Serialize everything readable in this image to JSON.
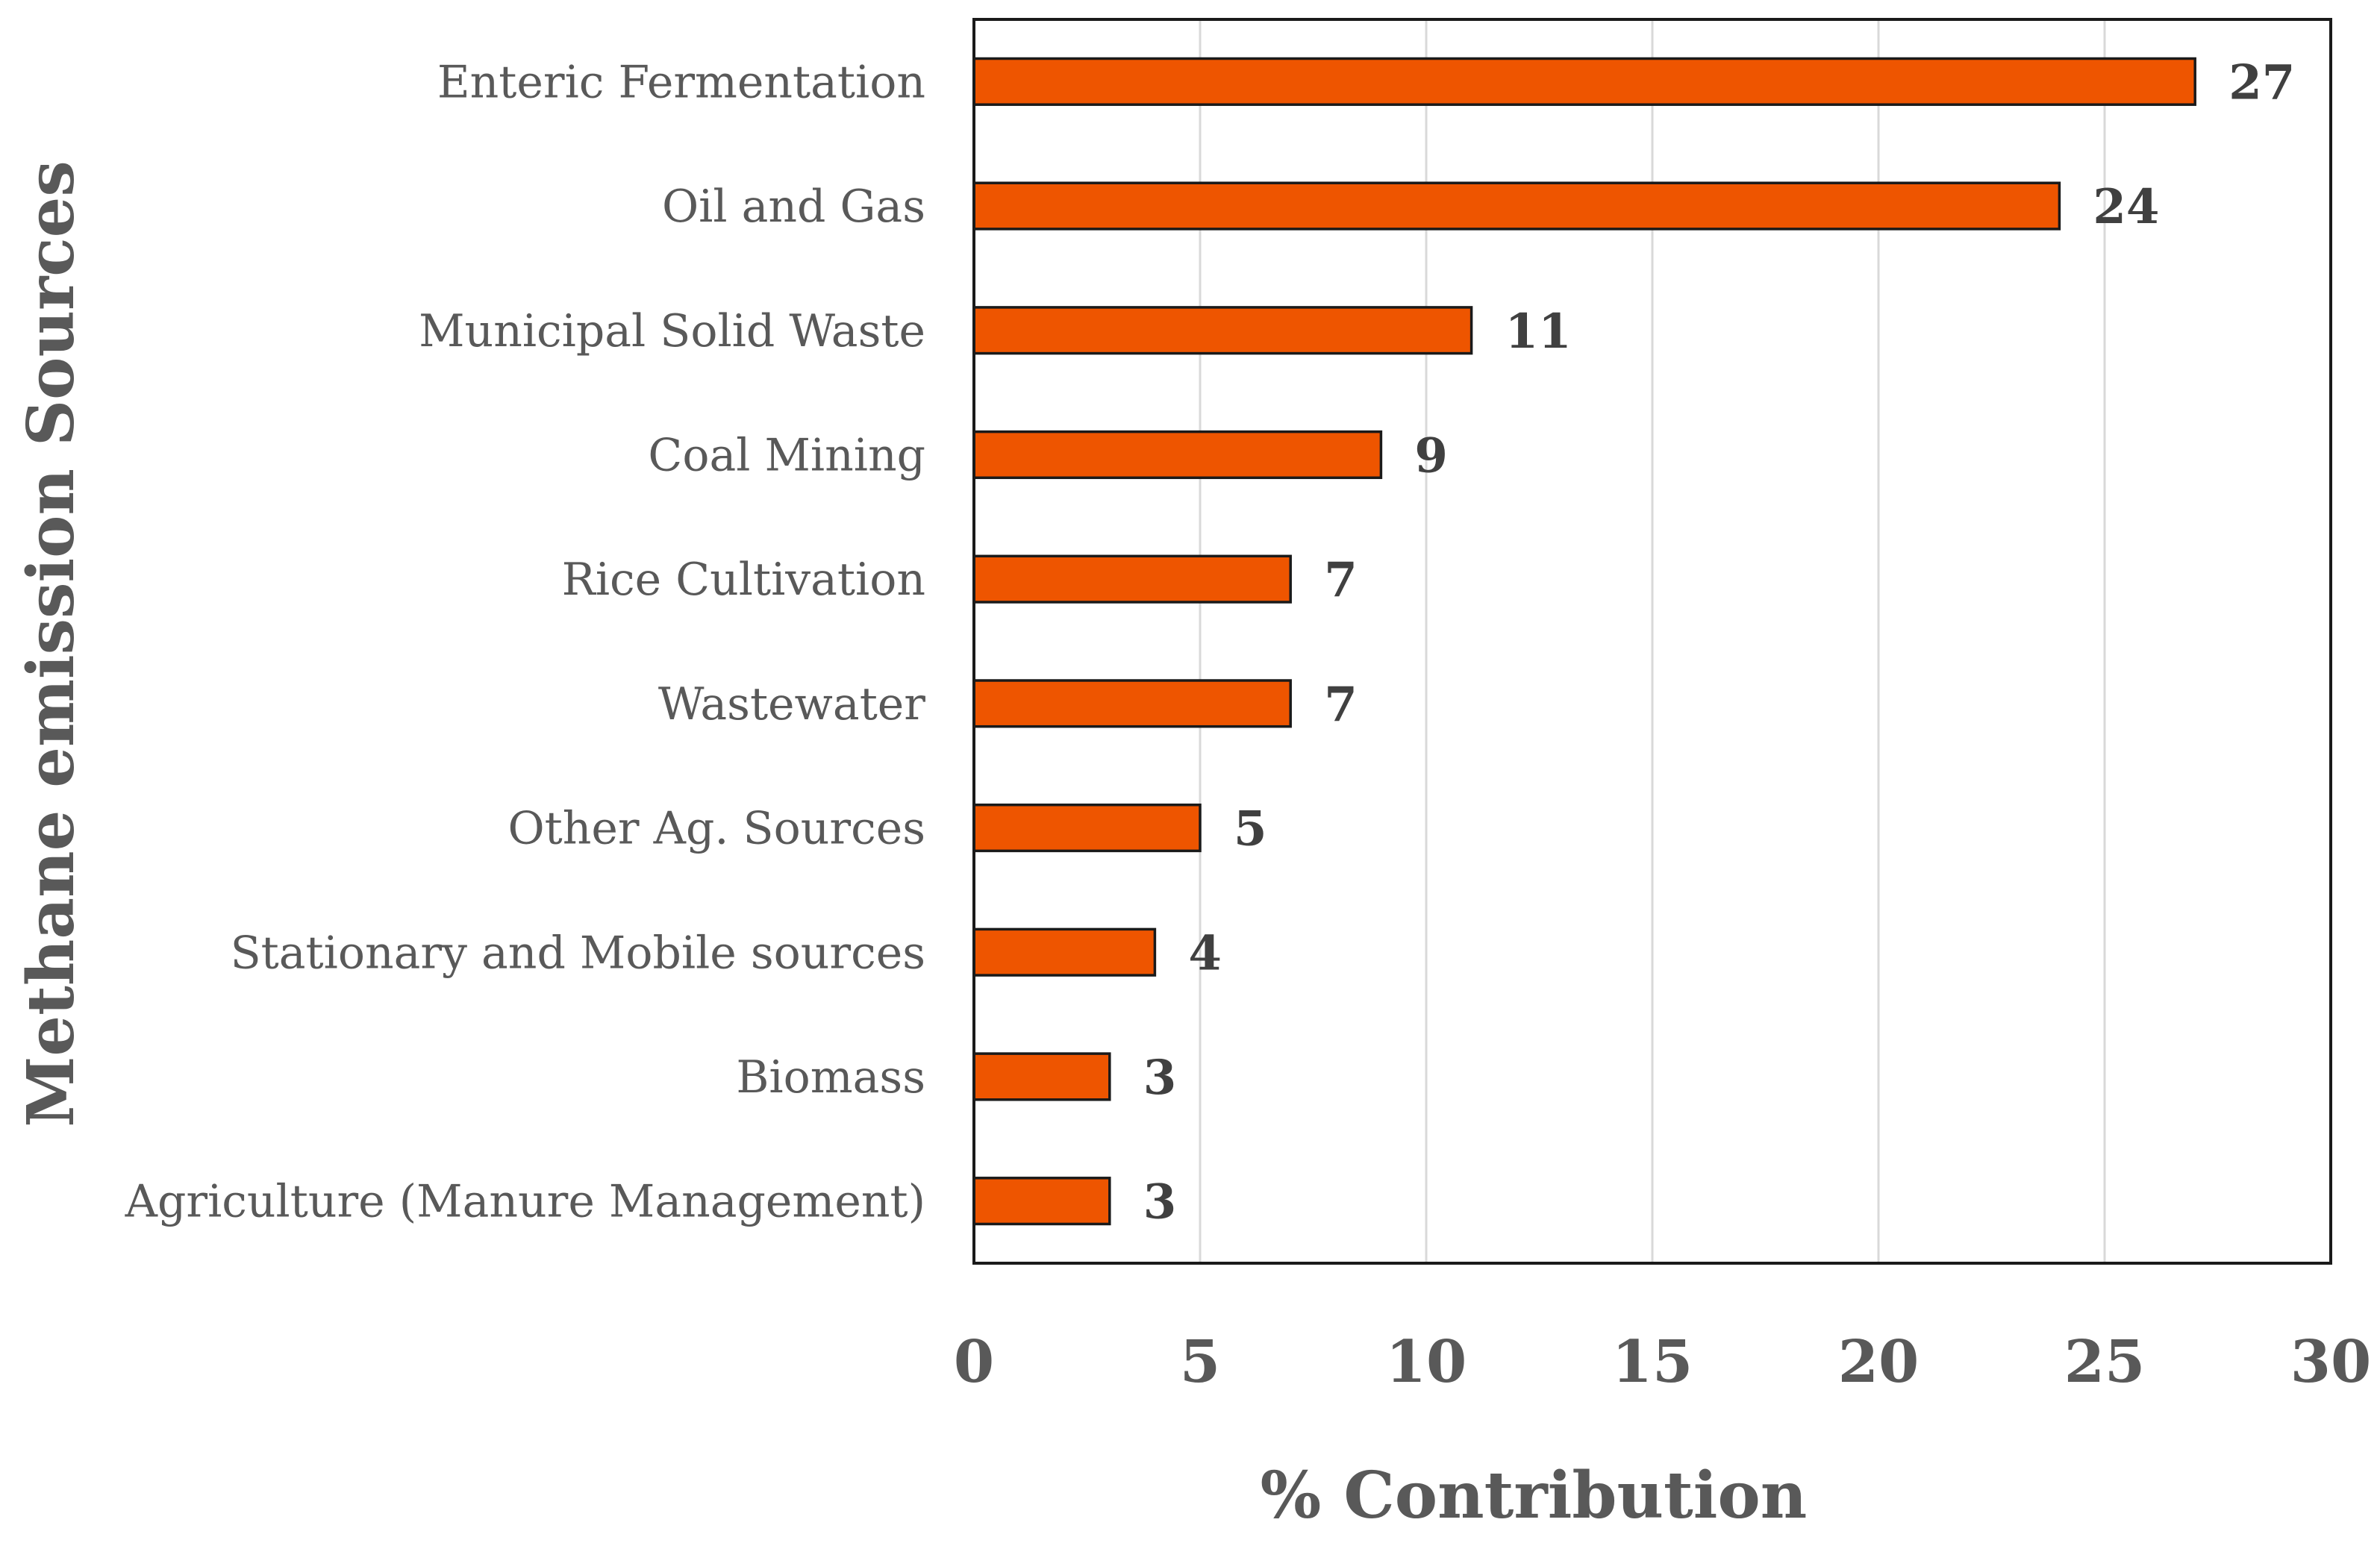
{
  "chart_data": {
    "type": "bar",
    "orientation": "horizontal",
    "title": "",
    "xlabel": "% Contribution",
    "ylabel": "Methane emission Sources",
    "categories": [
      "Enteric Fermentation",
      "Oil and Gas",
      "Municipal Solid Waste",
      "Coal Mining",
      "Rice Cultivation",
      "Wastewater",
      "Other Ag. Sources",
      "Stationary and Mobile sources",
      "Biomass",
      "Agriculture (Manure Management)"
    ],
    "values": [
      27,
      24,
      11,
      9,
      7,
      7,
      5,
      4,
      3,
      3
    ],
    "xlim": [
      0,
      30
    ],
    "xticks": [
      0,
      5,
      10,
      15,
      20,
      25,
      30
    ],
    "grid": true,
    "legend": "none",
    "bar_color": "#EE5500",
    "bar_edge_color": "#1a1a1a"
  }
}
